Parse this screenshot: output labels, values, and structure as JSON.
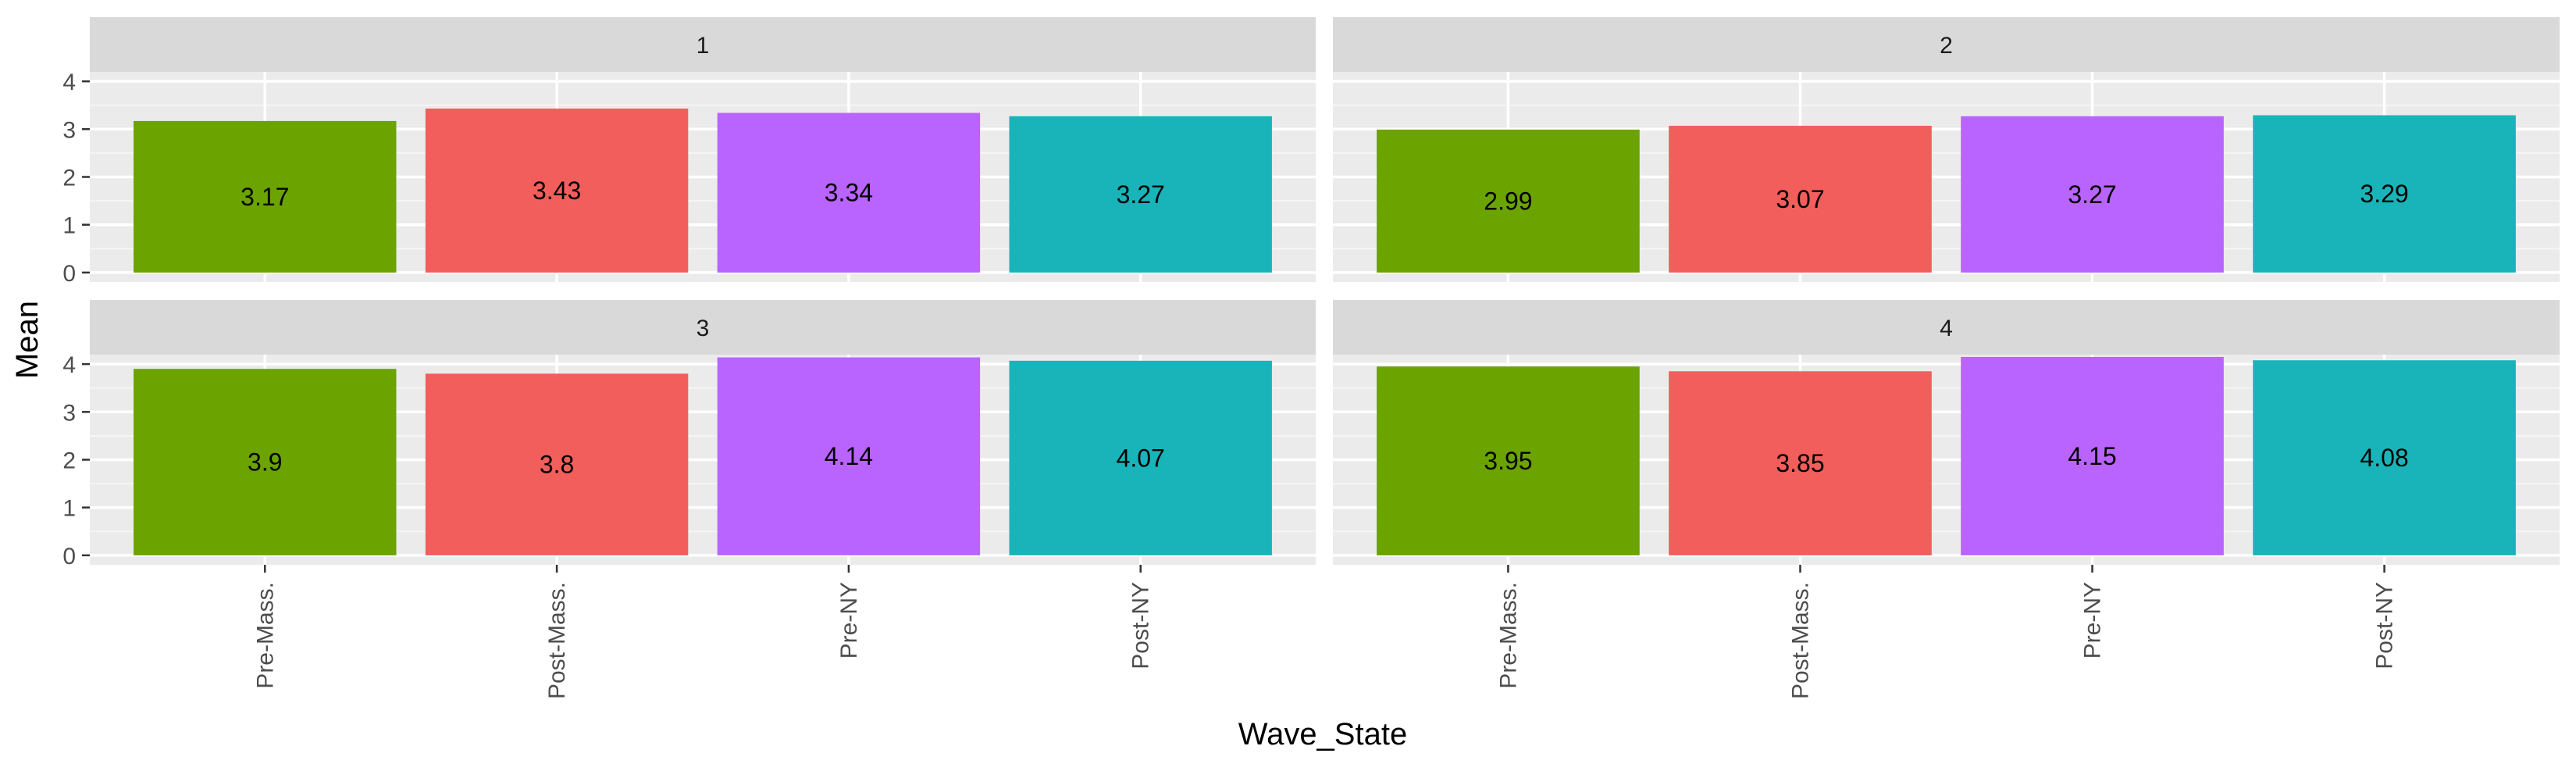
{
  "chart_data": {
    "type": "bar",
    "facet_variable": "",
    "panels": [
      {
        "label": "1",
        "values": [
          3.17,
          3.43,
          3.34,
          3.27
        ],
        "value_labels": [
          "3.17",
          "3.43",
          "3.34",
          "3.27"
        ]
      },
      {
        "label": "2",
        "values": [
          2.99,
          3.07,
          3.27,
          3.29
        ],
        "value_labels": [
          "2.99",
          "3.07",
          "3.27",
          "3.29"
        ]
      },
      {
        "label": "3",
        "values": [
          3.9,
          3.8,
          4.14,
          4.07
        ],
        "value_labels": [
          "3.9",
          "3.8",
          "4.14",
          "4.07"
        ]
      },
      {
        "label": "4",
        "values": [
          3.95,
          3.85,
          4.15,
          4.08
        ],
        "value_labels": [
          "3.95",
          "3.85",
          "4.15",
          "4.08"
        ]
      }
    ],
    "categories": [
      "Pre-Mass.",
      "Post-Mass.",
      "Pre-NY",
      "Post-NY"
    ],
    "colors": [
      "#6ba300",
      "#f25e5b",
      "#b964fe",
      "#19b4b9"
    ],
    "xlabel": "Wave_State",
    "ylabel": "Mean",
    "ylim": [
      0,
      4
    ],
    "yticks": [
      "0",
      "1",
      "2",
      "3",
      "4"
    ],
    "grid": true,
    "panel_background": "#ebebeb",
    "strip_background": "#d9d9d9",
    "legend": "none"
  }
}
